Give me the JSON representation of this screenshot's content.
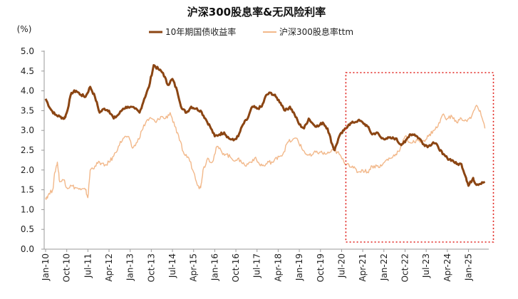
{
  "chart_data": {
    "type": "line",
    "title": "沪深300股息率&无风险利率",
    "ylabel": "(%)",
    "xlabel": "",
    "ylim": [
      0,
      5
    ],
    "yticks": [
      "0.0",
      "0.5",
      "1.0",
      "1.5",
      "2.0",
      "2.5",
      "3.0",
      "3.5",
      "4.0",
      "4.5",
      "5.0"
    ],
    "xticks": [
      "Jan-10",
      "Oct-10",
      "Jul-11",
      "Apr-12",
      "Jan-13",
      "Oct-13",
      "Jul-14",
      "Apr-15",
      "Jan-16",
      "Oct-16",
      "Jul-17",
      "Apr-18",
      "Jan-19",
      "Oct-19",
      "Jul-20",
      "Apr-21",
      "Jan-22",
      "Oct-22",
      "Jul-23",
      "Apr-24",
      "Jan-25"
    ],
    "highlight": {
      "from": "Jul-20",
      "to": "Aug-25",
      "style": "dotted-red-box"
    },
    "series": [
      {
        "name": "10年期国债收益率",
        "color": "#8B4513",
        "width": 3,
        "points": [
          [
            "2010-01",
            3.8
          ],
          [
            "2010-03",
            3.55
          ],
          [
            "2010-05",
            3.4
          ],
          [
            "2010-07",
            3.35
          ],
          [
            "2010-09",
            3.3
          ],
          [
            "2010-10",
            3.45
          ],
          [
            "2010-12",
            3.95
          ],
          [
            "2011-02",
            4.0
          ],
          [
            "2011-04",
            3.9
          ],
          [
            "2011-06",
            3.85
          ],
          [
            "2011-08",
            4.1
          ],
          [
            "2011-10",
            3.85
          ],
          [
            "2011-12",
            3.45
          ],
          [
            "2012-02",
            3.55
          ],
          [
            "2012-04",
            3.5
          ],
          [
            "2012-06",
            3.3
          ],
          [
            "2012-08",
            3.4
          ],
          [
            "2012-10",
            3.55
          ],
          [
            "2012-12",
            3.6
          ],
          [
            "2013-03",
            3.55
          ],
          [
            "2013-05",
            3.45
          ],
          [
            "2013-07",
            3.8
          ],
          [
            "2013-09",
            4.1
          ],
          [
            "2013-11",
            4.65
          ],
          [
            "2014-01",
            4.55
          ],
          [
            "2014-03",
            4.45
          ],
          [
            "2014-05",
            4.15
          ],
          [
            "2014-07",
            4.3
          ],
          [
            "2014-09",
            4.0
          ],
          [
            "2014-11",
            3.55
          ],
          [
            "2015-01",
            3.45
          ],
          [
            "2015-03",
            3.6
          ],
          [
            "2015-05",
            3.55
          ],
          [
            "2015-07",
            3.5
          ],
          [
            "2015-09",
            3.3
          ],
          [
            "2015-11",
            3.1
          ],
          [
            "2016-01",
            2.85
          ],
          [
            "2016-03",
            2.9
          ],
          [
            "2016-05",
            2.95
          ],
          [
            "2016-07",
            2.8
          ],
          [
            "2016-09",
            2.75
          ],
          [
            "2016-11",
            2.85
          ],
          [
            "2017-01",
            3.15
          ],
          [
            "2017-03",
            3.3
          ],
          [
            "2017-05",
            3.6
          ],
          [
            "2017-07",
            3.55
          ],
          [
            "2017-09",
            3.6
          ],
          [
            "2017-11",
            3.9
          ],
          [
            "2018-01",
            3.95
          ],
          [
            "2018-03",
            3.85
          ],
          [
            "2018-05",
            3.7
          ],
          [
            "2018-07",
            3.5
          ],
          [
            "2018-09",
            3.6
          ],
          [
            "2018-11",
            3.4
          ],
          [
            "2019-01",
            3.15
          ],
          [
            "2019-03",
            3.05
          ],
          [
            "2019-05",
            3.3
          ],
          [
            "2019-07",
            3.15
          ],
          [
            "2019-09",
            3.1
          ],
          [
            "2019-11",
            3.2
          ],
          [
            "2020-01",
            3.05
          ],
          [
            "2020-03",
            2.65
          ],
          [
            "2020-04",
            2.5
          ],
          [
            "2020-06",
            2.85
          ],
          [
            "2020-08",
            3.0
          ],
          [
            "2020-10",
            3.15
          ],
          [
            "2020-12",
            3.2
          ],
          [
            "2021-02",
            3.25
          ],
          [
            "2021-04",
            3.2
          ],
          [
            "2021-06",
            3.1
          ],
          [
            "2021-08",
            2.9
          ],
          [
            "2021-10",
            2.95
          ],
          [
            "2021-12",
            2.8
          ],
          [
            "2022-02",
            2.8
          ],
          [
            "2022-04",
            2.8
          ],
          [
            "2022-06",
            2.8
          ],
          [
            "2022-08",
            2.65
          ],
          [
            "2022-10",
            2.7
          ],
          [
            "2022-12",
            2.9
          ],
          [
            "2023-02",
            2.9
          ],
          [
            "2023-04",
            2.8
          ],
          [
            "2023-06",
            2.65
          ],
          [
            "2023-08",
            2.6
          ],
          [
            "2023-10",
            2.7
          ],
          [
            "2023-12",
            2.6
          ],
          [
            "2024-02",
            2.4
          ],
          [
            "2024-04",
            2.3
          ],
          [
            "2024-06",
            2.25
          ],
          [
            "2024-08",
            2.15
          ],
          [
            "2024-10",
            2.15
          ],
          [
            "2024-12",
            1.8
          ],
          [
            "2025-01",
            1.6
          ],
          [
            "2025-03",
            1.8
          ],
          [
            "2025-04",
            1.65
          ],
          [
            "2025-06",
            1.65
          ],
          [
            "2025-08",
            1.7
          ]
        ]
      },
      {
        "name": "沪深300股息率ttm",
        "color": "#F2B88A",
        "width": 1.4,
        "points": [
          [
            "2010-01",
            1.3
          ],
          [
            "2010-02",
            1.35
          ],
          [
            "2010-04",
            1.5
          ],
          [
            "2010-05",
            1.95
          ],
          [
            "2010-06",
            2.2
          ],
          [
            "2010-07",
            1.7
          ],
          [
            "2010-09",
            1.75
          ],
          [
            "2010-10",
            1.55
          ],
          [
            "2010-12",
            1.6
          ],
          [
            "2011-02",
            1.55
          ],
          [
            "2011-04",
            1.5
          ],
          [
            "2011-06",
            1.5
          ],
          [
            "2011-07",
            1.3
          ],
          [
            "2011-08",
            2.0
          ],
          [
            "2011-10",
            2.1
          ],
          [
            "2011-12",
            2.2
          ],
          [
            "2012-02",
            2.1
          ],
          [
            "2012-04",
            2.2
          ],
          [
            "2012-06",
            2.35
          ],
          [
            "2012-08",
            2.6
          ],
          [
            "2012-10",
            2.8
          ],
          [
            "2012-12",
            2.85
          ],
          [
            "2013-02",
            2.55
          ],
          [
            "2013-04",
            2.7
          ],
          [
            "2013-06",
            3.0
          ],
          [
            "2013-08",
            3.25
          ],
          [
            "2013-10",
            3.3
          ],
          [
            "2013-12",
            3.2
          ],
          [
            "2014-02",
            3.35
          ],
          [
            "2014-04",
            3.3
          ],
          [
            "2014-06",
            3.45
          ],
          [
            "2014-08",
            3.1
          ],
          [
            "2014-10",
            2.75
          ],
          [
            "2014-12",
            2.4
          ],
          [
            "2015-02",
            2.3
          ],
          [
            "2015-04",
            1.95
          ],
          [
            "2015-06",
            1.6
          ],
          [
            "2015-07",
            1.55
          ],
          [
            "2015-08",
            2.0
          ],
          [
            "2015-10",
            2.3
          ],
          [
            "2015-12",
            2.2
          ],
          [
            "2016-02",
            2.6
          ],
          [
            "2016-04",
            2.45
          ],
          [
            "2016-06",
            2.4
          ],
          [
            "2016-08",
            2.3
          ],
          [
            "2016-10",
            2.25
          ],
          [
            "2016-12",
            2.25
          ],
          [
            "2017-02",
            2.1
          ],
          [
            "2017-04",
            2.2
          ],
          [
            "2017-06",
            2.3
          ],
          [
            "2017-08",
            2.15
          ],
          [
            "2017-10",
            2.1
          ],
          [
            "2017-12",
            2.2
          ],
          [
            "2018-02",
            2.2
          ],
          [
            "2018-04",
            2.35
          ],
          [
            "2018-06",
            2.4
          ],
          [
            "2018-08",
            2.7
          ],
          [
            "2018-10",
            2.75
          ],
          [
            "2018-12",
            2.8
          ],
          [
            "2019-02",
            2.55
          ],
          [
            "2019-04",
            2.4
          ],
          [
            "2019-06",
            2.35
          ],
          [
            "2019-08",
            2.45
          ],
          [
            "2019-10",
            2.45
          ],
          [
            "2019-12",
            2.4
          ],
          [
            "2020-02",
            2.45
          ],
          [
            "2020-04",
            2.5
          ],
          [
            "2020-06",
            2.4
          ],
          [
            "2020-08",
            2.2
          ],
          [
            "2020-10",
            2.15
          ],
          [
            "2020-12",
            2.05
          ],
          [
            "2021-02",
            1.95
          ],
          [
            "2021-04",
            2.0
          ],
          [
            "2021-06",
            1.95
          ],
          [
            "2021-08",
            2.1
          ],
          [
            "2021-10",
            2.1
          ],
          [
            "2021-12",
            2.1
          ],
          [
            "2022-02",
            2.25
          ],
          [
            "2022-04",
            2.3
          ],
          [
            "2022-06",
            2.4
          ],
          [
            "2022-08",
            2.55
          ],
          [
            "2022-10",
            2.85
          ],
          [
            "2022-12",
            2.7
          ],
          [
            "2023-02",
            2.7
          ],
          [
            "2023-04",
            2.75
          ],
          [
            "2023-06",
            2.75
          ],
          [
            "2023-08",
            2.85
          ],
          [
            "2023-10",
            3.0
          ],
          [
            "2023-12",
            3.1
          ],
          [
            "2024-02",
            3.4
          ],
          [
            "2024-04",
            3.3
          ],
          [
            "2024-06",
            3.35
          ],
          [
            "2024-08",
            3.2
          ],
          [
            "2024-10",
            3.3
          ],
          [
            "2024-12",
            3.25
          ],
          [
            "2025-02",
            3.3
          ],
          [
            "2025-04",
            3.6
          ],
          [
            "2025-06",
            3.5
          ],
          [
            "2025-08",
            3.05
          ]
        ]
      }
    ]
  }
}
